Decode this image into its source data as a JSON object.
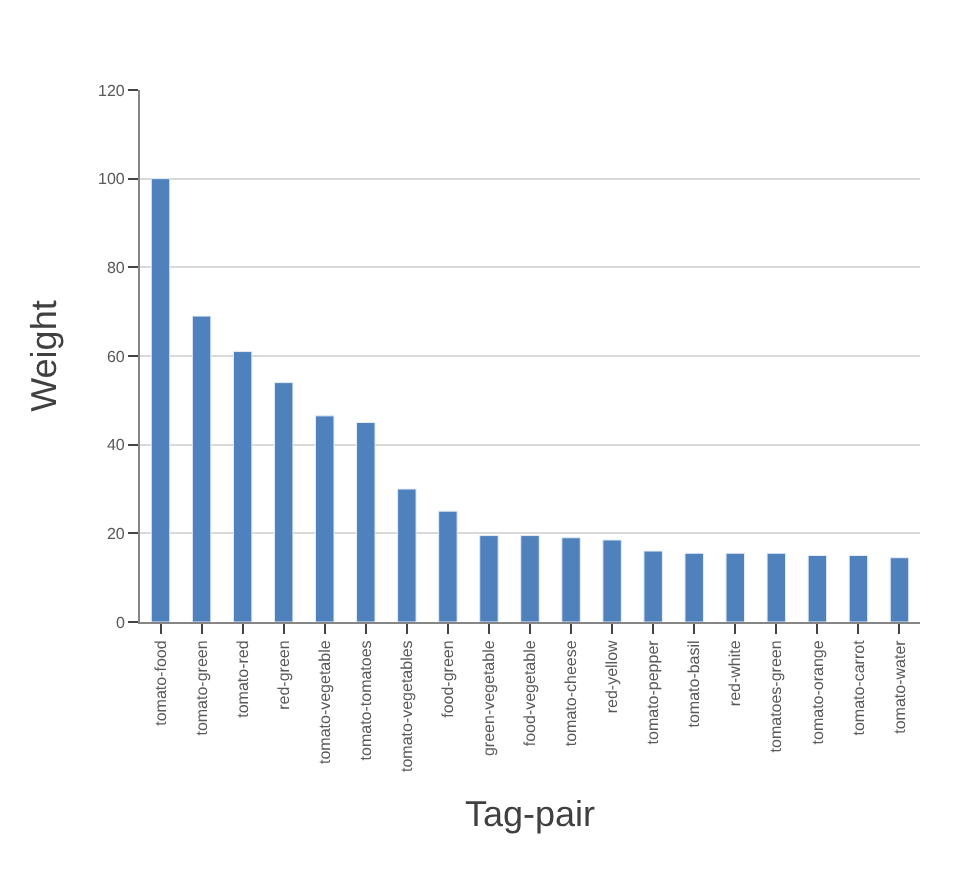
{
  "chart_data": {
    "type": "bar",
    "xlabel": "Tag-pair",
    "ylabel": "Weight",
    "categories": [
      "tomato-food",
      "tomato-green",
      "tomato-red",
      "red-green",
      "tomato-vegetable",
      "tomato-tomatoes",
      "tomato-vegetables",
      "food-green",
      "green-vegetable",
      "food-vegetable",
      "tomato-cheese",
      "red-yellow",
      "tomato-pepper",
      "tomato-basil",
      "red-white",
      "tomatoes-green",
      "tomato-orange",
      "tomato-carrot",
      "tomato-water"
    ],
    "values": [
      100,
      69,
      61,
      54,
      46.5,
      45,
      30,
      25,
      19.5,
      19.5,
      19,
      18.5,
      16,
      15.5,
      15.5,
      15.5,
      15,
      15,
      14.5
    ],
    "color": "#4f81bd",
    "ylim": [
      0,
      120
    ],
    "yticks": [
      0,
      20,
      40,
      60,
      80,
      100,
      120
    ],
    "grid": "y",
    "legend": false
  }
}
